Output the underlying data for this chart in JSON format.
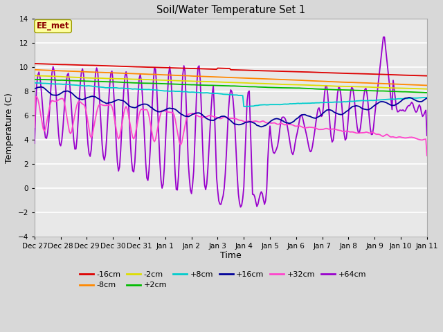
{
  "title": "Soil/Water Temperature Set 1",
  "xlabel": "Time",
  "ylabel": "Temperature (C)",
  "ylim": [
    -4,
    14
  ],
  "yticks": [
    -4,
    -2,
    0,
    2,
    4,
    6,
    8,
    10,
    12,
    14
  ],
  "fig_facecolor": "#d8d8d8",
  "ax_facecolor": "#e8e8e8",
  "annotation_text": "EE_met",
  "annotation_color": "#8b0000",
  "annotation_bg": "#ffffa0",
  "annotation_edge": "#999900",
  "series_colors": {
    "-16cm": "#dd0000",
    "-8cm": "#ff8800",
    "-2cm": "#dddd00",
    "+2cm": "#00bb00",
    "+8cm": "#00cccc",
    "+16cm": "#000099",
    "+32cm": "#ff44cc",
    "+64cm": "#9900cc"
  },
  "xtick_labels": [
    "Dec 27",
    "Dec 28",
    "Dec 29",
    "Dec 30",
    "Dec 31",
    "Jan 1",
    "Jan 2",
    "Jan 3",
    "Jan 4",
    "Jan 5",
    "Jan 6",
    "Jan 7",
    "Jan 8",
    "Jan 9",
    "Jan 10",
    "Jan 11"
  ],
  "legend_labels_row1": [
    "-16cm",
    "-8cm",
    "-2cm",
    "+2cm",
    "+8cm",
    "+16cm"
  ],
  "legend_labels_row2": [
    "+32cm",
    "+64cm"
  ],
  "legend_colors_row1": [
    "#dd0000",
    "#ff8800",
    "#dddd00",
    "#00bb00",
    "#00cccc",
    "#000099"
  ],
  "legend_colors_row2": [
    "#ff44cc",
    "#9900cc"
  ]
}
